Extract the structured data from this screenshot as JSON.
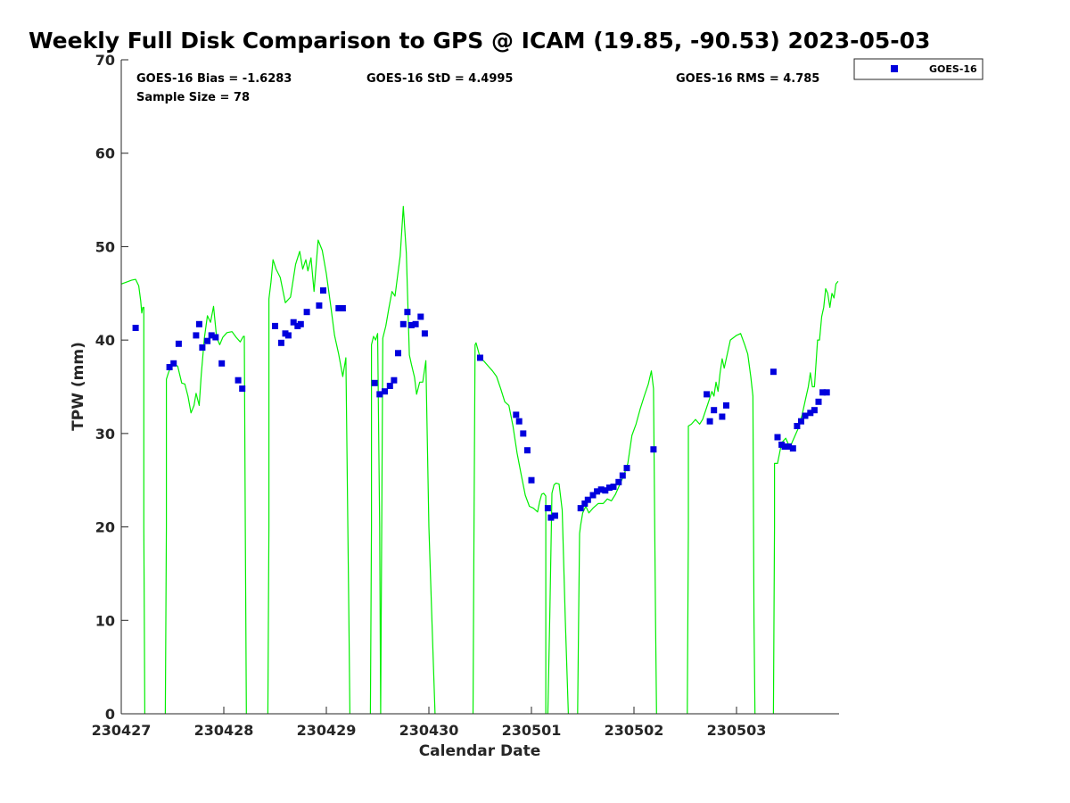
{
  "chart_data": {
    "type": "scatter",
    "title": "Weekly Full Disk Comparison to GPS @ ICAM (19.85, -90.53) 2023-05-03",
    "xlabel": "Calendar Date",
    "ylabel": "TPW (mm)",
    "x_unit": "days",
    "xlim": [
      0,
      7
    ],
    "ylim": [
      0,
      70
    ],
    "x_ticks": [
      {
        "value": 0,
        "label": "230427"
      },
      {
        "value": 1,
        "label": "230428"
      },
      {
        "value": 2,
        "label": "230429"
      },
      {
        "value": 3,
        "label": "230430"
      },
      {
        "value": 4,
        "label": "230501"
      },
      {
        "value": 5,
        "label": "230502"
      },
      {
        "value": 6,
        "label": "230503"
      }
    ],
    "y_ticks": [
      0,
      10,
      20,
      30,
      40,
      50,
      60,
      70
    ],
    "grid": false,
    "legend": {
      "placement": "outside-top-right",
      "entries": [
        "GOES-16"
      ]
    },
    "stats": {
      "bias": "GOES-16 Bias = -1.6283",
      "std": "GOES-16 StD = 4.4995",
      "rms": "GOES-16 RMS = 4.785",
      "sample": "Sample Size = 78"
    },
    "colors": {
      "goes": "#0000dd",
      "gps": "#00ee00"
    },
    "series": [
      {
        "name": "GOES-16",
        "style": "square-markers",
        "color": "#0000dd",
        "x": [
          0.14,
          0.47,
          0.51,
          0.56,
          0.73,
          0.76,
          0.79,
          0.84,
          0.88,
          0.92,
          0.98,
          1.14,
          1.18,
          1.5,
          1.56,
          1.6,
          1.63,
          1.68,
          1.72,
          1.75,
          1.81,
          1.93,
          1.97,
          2.12,
          2.16,
          2.47,
          2.52,
          2.57,
          2.62,
          2.66,
          2.7,
          2.75,
          2.79,
          2.83,
          2.87,
          2.92,
          2.96,
          3.5,
          3.85,
          3.88,
          3.92,
          3.96,
          4.0,
          4.16,
          4.19,
          4.23,
          4.48,
          4.52,
          4.55,
          4.6,
          4.64,
          4.68,
          4.72,
          4.76,
          4.8,
          4.85,
          4.89,
          4.93,
          5.19,
          5.71,
          5.74,
          5.78,
          5.86,
          5.9,
          6.36,
          6.4,
          6.44,
          6.47,
          6.51,
          6.55,
          6.59,
          6.63,
          6.67,
          6.72,
          6.76,
          6.8,
          6.84,
          6.88
        ],
        "y": [
          41.3,
          37.1,
          37.5,
          39.6,
          40.5,
          41.7,
          39.2,
          39.9,
          40.5,
          40.3,
          37.5,
          35.7,
          34.8,
          41.5,
          39.7,
          40.7,
          40.5,
          41.9,
          41.5,
          41.7,
          43.0,
          43.7,
          45.3,
          43.4,
          43.4,
          35.4,
          34.2,
          34.5,
          35.1,
          35.7,
          38.6,
          41.7,
          43.0,
          41.6,
          41.7,
          42.5,
          40.7,
          38.1,
          32.0,
          31.3,
          30.0,
          28.2,
          25.0,
          22.0,
          21.0,
          21.2,
          22.0,
          22.5,
          22.9,
          23.4,
          23.8,
          24.0,
          23.9,
          24.2,
          24.3,
          24.8,
          25.5,
          26.3,
          28.3,
          34.2,
          31.3,
          32.5,
          31.8,
          33.0,
          36.6,
          29.6,
          28.8,
          28.6,
          28.6,
          28.4,
          30.8,
          31.3,
          31.9,
          32.2,
          32.5,
          33.4,
          34.4,
          34.4
        ]
      },
      {
        "name": "",
        "style": "line",
        "color": "#00ee00",
        "segments": [
          {
            "x": [
              0.0,
              0.05,
              0.1,
              0.14,
              0.17,
              0.19,
              0.2,
              0.21,
              0.22,
              0.22,
              0.23
            ],
            "y": [
              46.0,
              46.2,
              46.4,
              46.5,
              45.8,
              44.2,
              42.9,
              43.5,
              43.5,
              20.0,
              0.0
            ]
          },
          {
            "x": [
              0.43,
              0.44,
              0.44,
              0.46,
              0.49,
              0.51,
              0.55,
              0.59,
              0.62,
              0.65,
              0.68,
              0.71,
              0.73,
              0.76,
              0.78,
              0.81,
              0.84,
              0.87,
              0.9,
              0.93,
              0.96,
              0.99,
              1.03,
              1.08,
              1.12,
              1.16,
              1.19,
              1.2,
              1.21,
              1.22
            ],
            "y": [
              0.0,
              20.0,
              35.8,
              36.5,
              37.3,
              37.5,
              37.2,
              35.4,
              35.3,
              34.0,
              32.2,
              33.0,
              34.3,
              33.0,
              36.3,
              40.2,
              42.6,
              41.9,
              43.6,
              40.3,
              39.5,
              40.3,
              40.8,
              40.9,
              40.3,
              39.8,
              40.4,
              40.4,
              20.0,
              0.0
            ]
          },
          {
            "x": [
              1.43,
              1.44,
              1.44,
              1.46,
              1.48,
              1.51,
              1.55,
              1.6,
              1.65,
              1.7,
              1.74,
              1.77,
              1.8,
              1.82,
              1.85,
              1.88,
              1.92,
              1.96,
              2.0,
              2.04,
              2.08,
              2.12,
              2.16,
              2.19,
              2.21,
              2.22,
              2.23
            ],
            "y": [
              0.0,
              20.0,
              44.4,
              46.2,
              48.6,
              47.6,
              46.7,
              44.0,
              44.6,
              48.1,
              49.5,
              47.6,
              48.6,
              47.4,
              48.8,
              45.2,
              50.7,
              49.6,
              47.1,
              43.9,
              40.5,
              38.5,
              36.1,
              38.1,
              20.0,
              10.0,
              0.0
            ]
          },
          {
            "x": [
              2.43,
              2.44,
              2.44,
              2.46,
              2.48,
              2.5,
              2.52,
              2.53,
              2.54,
              2.55
            ],
            "y": [
              0.0,
              20.0,
              39.5,
              40.4,
              40.0,
              40.7,
              20.0,
              0.0,
              20.0,
              40.2
            ]
          },
          {
            "x": [
              2.55,
              2.58,
              2.61,
              2.64,
              2.67,
              2.69,
              2.72,
              2.75,
              2.78,
              2.81,
              2.83,
              2.86,
              2.88,
              2.91,
              2.94,
              2.97,
              3.0,
              3.03,
              3.06
            ],
            "y": [
              40.2,
              41.5,
              43.4,
              45.2,
              44.7,
              46.5,
              49.0,
              54.3,
              49.3,
              38.4,
              37.4,
              36.0,
              34.2,
              35.5,
              35.5,
              37.8,
              20.0,
              10.0,
              0.0
            ]
          },
          {
            "x": [
              3.43,
              3.44,
              3.45,
              3.46,
              3.5,
              3.54,
              3.58,
              3.62,
              3.66,
              3.7,
              3.74,
              3.78,
              3.82,
              3.86,
              3.9,
              3.94,
              3.98,
              4.02,
              4.06,
              4.08,
              4.1,
              4.12,
              4.14,
              4.14
            ],
            "y": [
              0.0,
              20.0,
              39.5,
              39.7,
              38.1,
              37.7,
              37.2,
              36.7,
              36.1,
              34.8,
              33.4,
              33.0,
              30.8,
              27.9,
              25.6,
              23.4,
              22.2,
              22.0,
              21.6,
              22.7,
              23.5,
              23.6,
              23.3,
              0.0
            ]
          },
          {
            "x": [
              4.16,
              4.18,
              4.2,
              4.22,
              4.24,
              4.27,
              4.3,
              4.33,
              4.36
            ],
            "y": [
              0.0,
              11.0,
              23.6,
              24.5,
              24.7,
              24.6,
              21.8,
              10.0,
              0.0
            ]
          },
          {
            "x": [
              4.45,
              4.46,
              4.47,
              4.48,
              4.5,
              4.53,
              4.56,
              4.6,
              4.65,
              4.7,
              4.74,
              4.78,
              4.82,
              4.86,
              4.9,
              4.94,
              4.98,
              5.02,
              5.06,
              5.1,
              5.14,
              5.17,
              5.19,
              5.21,
              5.22
            ],
            "y": [
              0.0,
              10.0,
              19.3,
              20.2,
              21.5,
              22.2,
              21.5,
              22.0,
              22.5,
              22.5,
              23.0,
              22.8,
              23.5,
              24.5,
              25.5,
              26.8,
              29.8,
              31.0,
              32.6,
              34.0,
              35.3,
              36.7,
              34.8,
              10.0,
              0.0
            ]
          },
          {
            "x": [
              5.52,
              5.53,
              5.53,
              5.56,
              5.6,
              5.64,
              5.67,
              5.7,
              5.73,
              5.76,
              5.78,
              5.8,
              5.82,
              5.84,
              5.86,
              5.88,
              5.9,
              5.94,
              6.0,
              6.04,
              6.08,
              6.11,
              6.14,
              6.16,
              6.17,
              6.18
            ],
            "y": [
              0.0,
              20.0,
              30.8,
              31.0,
              31.5,
              31.0,
              31.5,
              32.5,
              33.5,
              34.5,
              34.0,
              35.5,
              34.5,
              36.5,
              38.0,
              37.0,
              38.0,
              40.0,
              40.5,
              40.7,
              39.5,
              38.5,
              36.0,
              34.0,
              10.0,
              0.0
            ]
          },
          {
            "x": [
              6.36,
              6.37,
              6.37,
              6.4,
              6.44,
              6.48,
              6.52,
              6.56,
              6.6,
              6.64,
              6.67,
              6.7,
              6.72,
              6.74,
              6.76,
              6.79,
              6.81,
              6.83,
              6.85,
              6.87,
              6.89,
              6.91,
              6.93,
              6.95,
              6.97,
              6.99
            ],
            "y": [
              0.0,
              20.0,
              26.8,
              26.8,
              29.0,
              29.5,
              28.5,
              29.5,
              30.5,
              32.0,
              33.5,
              35.0,
              36.5,
              35.0,
              35.0,
              40.0,
              40.0,
              42.5,
              43.5,
              45.5,
              45.0,
              43.5,
              45.0,
              44.5,
              46.0,
              46.3
            ]
          }
        ]
      }
    ]
  }
}
